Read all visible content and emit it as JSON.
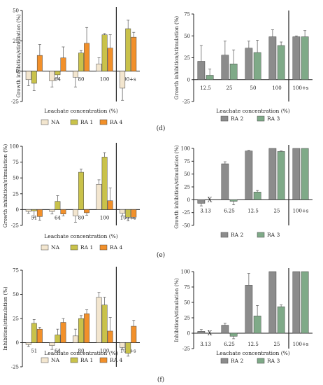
{
  "panel_labels": [
    "(d)",
    "(e)",
    "(f)"
  ],
  "legend_colors": {
    "NA": "#f3e6cf",
    "RA 1": "#c9c24a",
    "RA 4": "#f2902a",
    "RA 2": "#8c8c8c",
    "RA 3": "#7faa88"
  },
  "chart_data": [
    {
      "type": "bar",
      "ylabel": "Growth inhibition/stimulation (%)",
      "xlabel": "Leachate concentration (%)",
      "ylim": [
        -25,
        50
      ],
      "yticks": [
        -25,
        0,
        25,
        50
      ],
      "categories": [
        "51",
        "64",
        "80",
        "100",
        "100+s"
      ],
      "separator_after": 3,
      "series": [
        {
          "name": "NA",
          "values": [
            -7,
            -8,
            -5,
            6,
            -14
          ],
          "errors": [
            5,
            5,
            8,
            5,
            10
          ]
        },
        {
          "name": "RA 1",
          "values": [
            -10,
            -3,
            15,
            30,
            35
          ],
          "errors": [
            6,
            3,
            2,
            1,
            7
          ]
        },
        {
          "name": "RA 4",
          "values": [
            13,
            11,
            23,
            19,
            28
          ],
          "errors": [
            9,
            9,
            13,
            11,
            4
          ]
        }
      ],
      "unavailable": []
    },
    {
      "type": "bar",
      "ylabel": "Growth inhibition/stimulation (%)",
      "xlabel": "Leachate concentration (%)",
      "ylim": [
        -25,
        75
      ],
      "yticks": [
        -25,
        0,
        25,
        50,
        75
      ],
      "categories": [
        "12.5",
        "25",
        "50",
        "100",
        "100+s"
      ],
      "separator_after": 3,
      "series": [
        {
          "name": "RA 2",
          "values": [
            21,
            28,
            36,
            49,
            49
          ],
          "errors": [
            18,
            16,
            8,
            8,
            1
          ]
        },
        {
          "name": "RA 3",
          "values": [
            5,
            18,
            31,
            39,
            49
          ],
          "errors": [
            7,
            16,
            14,
            4,
            7
          ]
        }
      ],
      "unavailable": []
    },
    {
      "type": "bar",
      "ylabel": "Growth inhibition/stimulation (%)",
      "xlabel": "Leachate concentration (%)",
      "ylim": [
        -25,
        100
      ],
      "yticks": [
        -25,
        0,
        25,
        50,
        75,
        100
      ],
      "categories": [
        "51",
        "64",
        "80",
        "100",
        "100+s"
      ],
      "separator_after": 3,
      "series": [
        {
          "name": "NA",
          "values": [
            -3,
            -3,
            -10,
            40,
            -6
          ],
          "errors": [
            3,
            4,
            10,
            7,
            4
          ]
        },
        {
          "name": "RA 1",
          "values": [
            -2,
            13,
            59,
            83,
            -12
          ],
          "errors": [
            10,
            9,
            5,
            7,
            6
          ]
        },
        {
          "name": "RA 4",
          "values": [
            -11,
            -7,
            -5,
            14,
            -12
          ],
          "errors": [
            6,
            3,
            4,
            20,
            2
          ]
        }
      ],
      "unavailable": []
    },
    {
      "type": "bar",
      "ylabel": "Growth inhibition/stimulation (%)",
      "xlabel": "",
      "ylim": [
        -50,
        100
      ],
      "yticks": [
        -50,
        -25,
        0,
        25,
        50,
        75,
        100
      ],
      "categories": [
        "3.13",
        "6.25",
        "12.5",
        "25",
        "100+s"
      ],
      "separator_after": 3,
      "series": [
        {
          "name": "RA 2",
          "values": [
            -7,
            70,
            95,
            100,
            100
          ],
          "errors": [
            5,
            4,
            1,
            0,
            0
          ]
        },
        {
          "name": "RA 3",
          "values": [
            null,
            -3,
            15,
            94,
            100
          ],
          "errors": [
            0,
            7,
            3,
            1,
            0
          ]
        }
      ],
      "unavailable": [
        {
          "category": 0,
          "series": 1,
          "label": "X"
        }
      ]
    },
    {
      "type": "bar",
      "ylabel": "Inhibition/stimulation (%)",
      "xlabel": "Leachate concentration (%)",
      "ylim": [
        -25,
        75
      ],
      "yticks": [
        -25,
        0,
        25,
        50,
        75
      ],
      "categories": [
        "51",
        "64",
        "80",
        "100",
        "100+s"
      ],
      "separator_after": 3,
      "series": [
        {
          "name": "NA",
          "values": [
            -2,
            -3,
            7,
            47,
            -5
          ],
          "errors": [
            2,
            4,
            7,
            5,
            2
          ]
        },
        {
          "name": "RA 1",
          "values": [
            20,
            8,
            25,
            39,
            -11
          ],
          "errors": [
            4,
            6,
            3,
            8,
            3
          ]
        },
        {
          "name": "RA 4",
          "values": [
            14,
            21,
            30,
            12,
            17
          ],
          "errors": [
            2,
            4,
            4,
            14,
            6
          ]
        }
      ],
      "unavailable": []
    },
    {
      "type": "bar",
      "ylabel": "Inhibition/stimulation (%)",
      "xlabel": "Leachate concentration (%)",
      "ylim": [
        -25,
        100
      ],
      "yticks": [
        -25,
        0,
        25,
        50,
        75,
        100
      ],
      "categories": [
        "3.13",
        "6.25",
        "12.5",
        "25",
        "100+s"
      ],
      "separator_after": 3,
      "series": [
        {
          "name": "RA 2",
          "values": [
            3,
            13,
            78,
            100,
            100
          ],
          "errors": [
            3,
            3,
            19,
            0,
            0
          ]
        },
        {
          "name": "RA 3",
          "values": [
            null,
            -5,
            28,
            43,
            100
          ],
          "errors": [
            0,
            4,
            17,
            3,
            0
          ]
        }
      ],
      "unavailable": [
        {
          "category": 0,
          "series": 1,
          "label": "X"
        }
      ]
    }
  ]
}
